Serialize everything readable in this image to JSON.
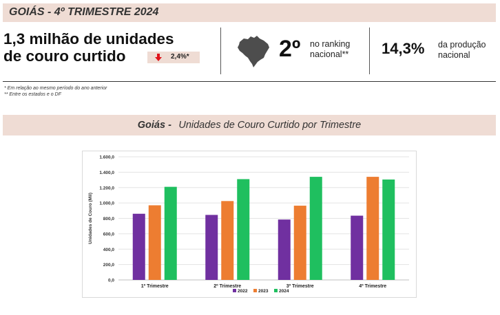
{
  "header": {
    "title": "GOIÁS - 4º TRIMESTRE 2024"
  },
  "summary": {
    "headline_line1": "1,3 milhão de unidades",
    "headline_line2": "de couro curtido",
    "change_value": "2,4%*",
    "change_direction": "down",
    "rank_value": "2º",
    "rank_label_line1": "no ranking",
    "rank_label_line2": "nacional**",
    "share_value": "14,3%",
    "share_label_line1": "da produção",
    "share_label_line2": "nacional"
  },
  "footnotes": [
    "* Em relação ao mesmo período do ano anterior",
    "** Entre os estados e o DF"
  ],
  "chart_header": {
    "prefix": "Goiás -",
    "title": "Unidades de Couro Curtido por Trimestre"
  },
  "colors": {
    "accent_bg": "#efdcd4",
    "down_arrow": "#e0121a",
    "map_fill": "#4d4d4d"
  },
  "chart_data": {
    "type": "bar",
    "ylabel": "Unidades de Couro (Mil)",
    "xlabel": "",
    "ylim": [
      0,
      1600
    ],
    "yticks": [
      0,
      200,
      400,
      600,
      800,
      1000,
      1200,
      1400,
      1600
    ],
    "ytick_labels": [
      "0,0",
      "200,0",
      "400,0",
      "600,0",
      "800,0",
      "1.000,0",
      "1.200,0",
      "1.400,0",
      "1.600,0"
    ],
    "grid": true,
    "legend_position": "bottom",
    "categories": [
      "1º Trimestre",
      "2º Trimestre",
      "3º Trimestre",
      "4º Trimestre"
    ],
    "series": [
      {
        "name": "2022",
        "color": "#7030a0",
        "values": [
          860,
          845,
          785,
          835
        ]
      },
      {
        "name": "2023",
        "color": "#ed7d31",
        "values": [
          970,
          1025,
          965,
          1340
        ]
      },
      {
        "name": "2024",
        "color": "#1fbf5f",
        "values": [
          1210,
          1310,
          1340,
          1305
        ]
      }
    ]
  }
}
